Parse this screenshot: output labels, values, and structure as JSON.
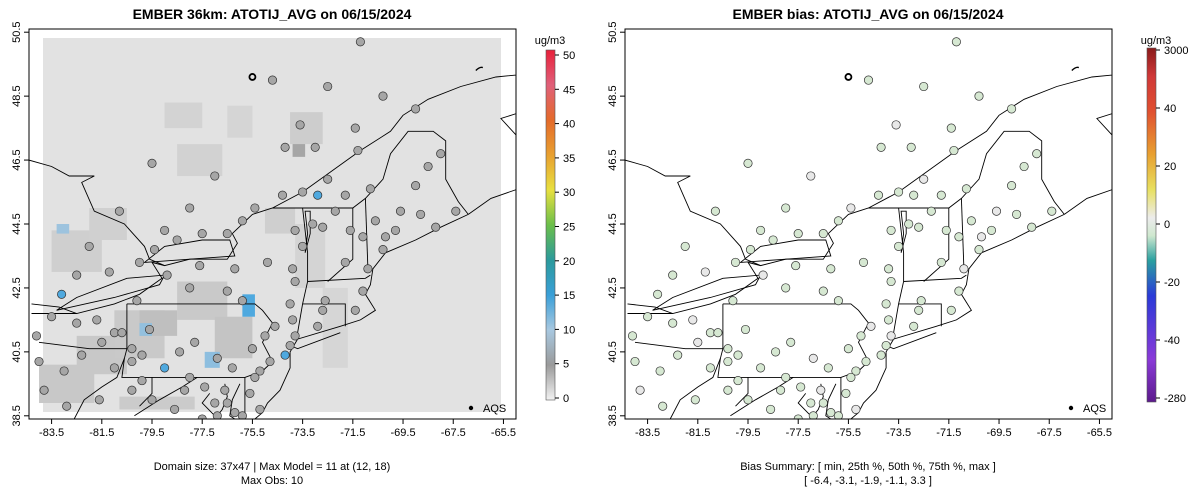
{
  "legend": {
    "marker_label": "AQS"
  },
  "chart_data": [
    {
      "type": "map",
      "title": "EMBER 36km: ATOTIJ_AVG on 06/15/2024",
      "xlim": [
        -84.4,
        -65.0
      ],
      "ylim": [
        38.4,
        50.6
      ],
      "x_ticks": [
        "-83.5",
        "-81.5",
        "-79.5",
        "-77.5",
        "-75.5",
        "-73.5",
        "-71.5",
        "-69.5",
        "-67.5",
        "-65.5"
      ],
      "y_ticks": [
        "38.5",
        "40.5",
        "42.5",
        "44.5",
        "46.5",
        "48.5",
        "50.5"
      ],
      "colorbar": {
        "unit": "ug/m3",
        "ticks": [
          "0",
          "5",
          "10",
          "15",
          "20",
          "25",
          "30",
          "35",
          "40",
          "45",
          "50"
        ]
      },
      "footer": [
        "Domain size: 37x47 | Max Model = 11 at (12, 18)",
        "Max Obs: 10"
      ],
      "observation_network": "AQS"
    },
    {
      "type": "map",
      "title": "EMBER bias: ATOTIJ_AVG on 06/15/2024",
      "xlim": [
        -84.4,
        -65.0
      ],
      "ylim": [
        38.4,
        50.6
      ],
      "x_ticks": [
        "-83.5",
        "-81.5",
        "-79.5",
        "-77.5",
        "-75.5",
        "-73.5",
        "-71.5",
        "-69.5",
        "-67.5",
        "-65.5"
      ],
      "y_ticks": [
        "38.5",
        "40.5",
        "42.5",
        "44.5",
        "46.5",
        "48.5",
        "50.5"
      ],
      "colorbar": {
        "unit": "ug/m3",
        "ticks": [
          "3000",
          "40",
          "20",
          "0",
          "-20",
          "-40",
          "-280"
        ]
      },
      "footer": [
        "Bias Summary: [ min, 25th %, 50th %, 75th %, max ]",
        "[ -6.4,   -3.1,   -1.9,   -1.1,   3.3 ]"
      ],
      "bias_summary": {
        "min": -6.4,
        "p25": -3.1,
        "p50": -1.9,
        "p75": -1.1,
        "max": 3.3
      },
      "observation_network": "AQS"
    }
  ],
  "colors": {
    "model_background": "#e2e2e2",
    "bias_marker": "#d6e8d2",
    "obs_marker": "#a6a6a6",
    "highlight": "#4fa9df"
  }
}
